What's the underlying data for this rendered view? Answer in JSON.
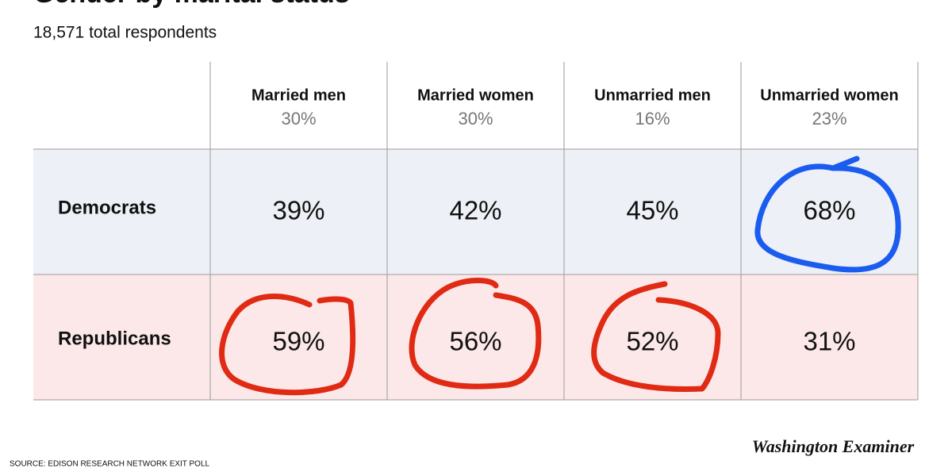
{
  "title": "Gender by marital status",
  "subtitle": "18,571 total respondents",
  "table": {
    "columns": [
      {
        "name": "Married men",
        "share": "30%"
      },
      {
        "name": "Married women",
        "share": "30%"
      },
      {
        "name": "Unmarried men",
        "share": "16%"
      },
      {
        "name": "Unmarried women",
        "share": "23%"
      }
    ],
    "rows": [
      {
        "label": "Democrats",
        "values": [
          "39%",
          "42%",
          "45%",
          "68%"
        ]
      },
      {
        "label": "Republicans",
        "values": [
          "59%",
          "56%",
          "52%",
          "31%"
        ]
      }
    ]
  },
  "source": "SOURCE: EDISON RESEARCH NETWORK EXIT POLL",
  "logo": "Washington Examiner"
}
